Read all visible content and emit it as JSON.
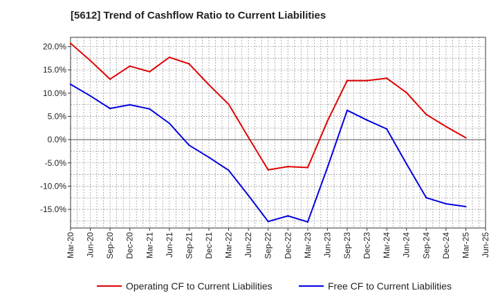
{
  "chart_data": {
    "type": "line",
    "title": "[5612]  Trend of Cashflow Ratio to Current Liabilities",
    "xlabel": "",
    "ylabel": "",
    "x": [
      "Mar-20",
      "Jun-20",
      "Sep-20",
      "Dec-20",
      "Mar-21",
      "Jun-21",
      "Sep-21",
      "Dec-21",
      "Mar-22",
      "Jun-22",
      "Sep-22",
      "Dec-22",
      "Mar-23",
      "Jun-23",
      "Sep-23",
      "Dec-23",
      "Mar-24",
      "Jun-24",
      "Sep-24",
      "Dec-24",
      "Mar-25",
      "Jun-25"
    ],
    "ylim": [
      -19,
      22
    ],
    "yticks": [
      20,
      15,
      10,
      5,
      0,
      -5,
      -10,
      -15
    ],
    "ytick_labels": [
      "20.0%",
      "15.0%",
      "10.0%",
      "5.0%",
      "0.0%",
      "-5.0%",
      "-10.0%",
      "-15.0%"
    ],
    "grid": true,
    "legend_position": "bottom",
    "series": [
      {
        "name": "Operating CF to Current Liabilities",
        "color": "#e00000",
        "values": [
          20.7,
          17.0,
          13.0,
          15.8,
          14.6,
          17.7,
          16.3,
          11.8,
          7.6,
          0.5,
          -6.5,
          -5.8,
          -6.0,
          4.0,
          12.7,
          12.7,
          13.2,
          10.1,
          5.4,
          2.8,
          0.4,
          null
        ]
      },
      {
        "name": "Free CF to Current Liabilities",
        "color": "#0000e0",
        "values": [
          11.9,
          9.4,
          6.7,
          7.5,
          6.6,
          3.5,
          -1.2,
          -3.8,
          -6.6,
          -12.0,
          -17.6,
          -16.4,
          -17.7,
          -6.0,
          6.3,
          4.2,
          2.3,
          -5.2,
          -12.5,
          -13.8,
          -14.4,
          null
        ]
      }
    ]
  }
}
